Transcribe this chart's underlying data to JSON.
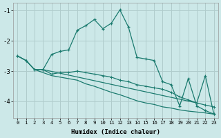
{
  "xlabel": "Humidex (Indice chaleur)",
  "background_color": "#cce8e8",
  "grid_color": "#b0cccc",
  "line_color": "#1a7a6e",
  "xlim": [
    -0.5,
    23.5
  ],
  "ylim": [
    -4.55,
    -0.75
  ],
  "yticks": [
    -4,
    -3,
    -2,
    -1
  ],
  "xticks": [
    0,
    1,
    2,
    3,
    4,
    5,
    6,
    7,
    8,
    9,
    10,
    11,
    12,
    13,
    14,
    15,
    16,
    17,
    18,
    19,
    20,
    21,
    22,
    23
  ],
  "series1_x": [
    0,
    1,
    2,
    3,
    4,
    5,
    6,
    7,
    8,
    9,
    10,
    11,
    12,
    13,
    14,
    15,
    16,
    17,
    18,
    19,
    20,
    21,
    22,
    23
  ],
  "series1_y": [
    -2.5,
    -2.65,
    -2.95,
    -2.95,
    -2.45,
    -2.35,
    -2.3,
    -1.65,
    -1.5,
    -1.3,
    -1.6,
    -1.42,
    -0.98,
    -1.55,
    -2.55,
    -2.6,
    -2.65,
    -3.35,
    -3.45,
    -4.15,
    -3.25,
    -4.15,
    -4.3,
    -4.42
  ],
  "series2_x": [
    0,
    1,
    2,
    3,
    4,
    5,
    6,
    7,
    8,
    9,
    10,
    11,
    12,
    13,
    14,
    15,
    16,
    17,
    18,
    19,
    20,
    21,
    22,
    23
  ],
  "series2_y": [
    -2.5,
    -2.65,
    -2.95,
    -2.95,
    -3.1,
    -3.05,
    -3.05,
    -3.0,
    -3.05,
    -3.1,
    -3.15,
    -3.2,
    -3.3,
    -3.35,
    -3.45,
    -3.5,
    -3.55,
    -3.6,
    -3.7,
    -3.85,
    -3.95,
    -4.05,
    -4.12,
    -4.18
  ],
  "series3_x": [
    0,
    1,
    2,
    3,
    4,
    5,
    6,
    7,
    8,
    9,
    10,
    11,
    12,
    13,
    14,
    15,
    16,
    17,
    18,
    19,
    20,
    21,
    22,
    23
  ],
  "series3_y": [
    -2.5,
    -2.65,
    -2.95,
    -3.05,
    -3.15,
    -3.2,
    -3.25,
    -3.3,
    -3.42,
    -3.5,
    -3.6,
    -3.7,
    -3.78,
    -3.88,
    -3.98,
    -4.05,
    -4.1,
    -4.18,
    -4.22,
    -4.28,
    -4.32,
    -4.35,
    -4.38,
    -4.42
  ],
  "series4_x": [
    3,
    21,
    22,
    23
  ],
  "series4_y": [
    -2.95,
    -4.05,
    -3.15,
    -4.42
  ]
}
